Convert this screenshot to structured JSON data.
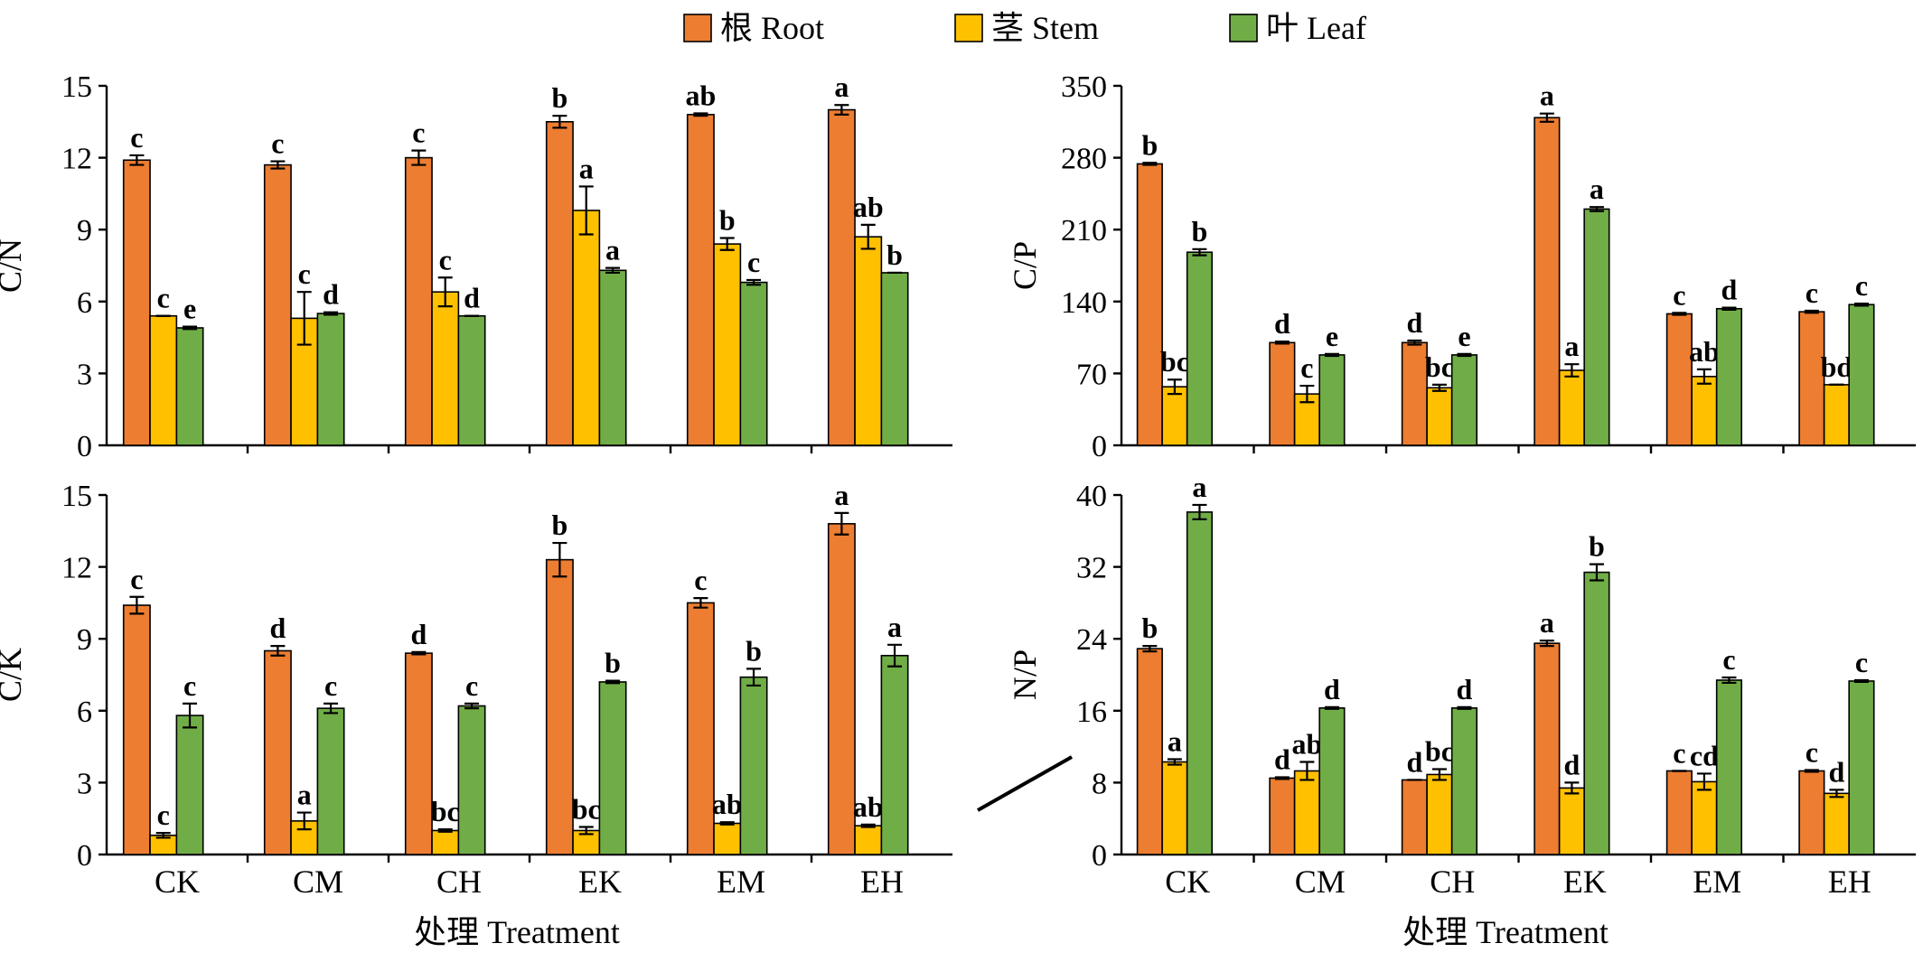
{
  "legend": [
    {
      "label": "根 Root",
      "color": "#ED7D31"
    },
    {
      "label": "茎 Stem",
      "color": "#FFC000"
    },
    {
      "label": "叶 Leaf",
      "color": "#70AD47"
    }
  ],
  "xlabel": "处理 Treatment",
  "chart_data": [
    {
      "type": "bar",
      "title": "",
      "ylabel": "C/N",
      "categories": [
        "CK",
        "CM",
        "CH",
        "EK",
        "EM",
        "EH"
      ],
      "ylim": [
        0,
        15
      ],
      "yticks": [
        0,
        3,
        6,
        9,
        12,
        15
      ],
      "series": [
        {
          "name": "根 Root",
          "values": [
            11.9,
            11.7,
            12.0,
            13.5,
            13.8,
            14.0
          ],
          "errors": [
            0.2,
            0.15,
            0.3,
            0.25,
            0.05,
            0.2
          ],
          "letters": [
            "c",
            "c",
            "c",
            "b",
            "ab",
            "a"
          ]
        },
        {
          "name": "茎 Stem",
          "values": [
            5.4,
            5.3,
            6.4,
            9.8,
            8.4,
            8.7
          ],
          "errors": [
            0.0,
            1.1,
            0.6,
            1.0,
            0.25,
            0.5
          ],
          "letters": [
            "c",
            "c",
            "c",
            "a",
            "b",
            "ab"
          ]
        },
        {
          "name": "叶 Leaf",
          "values": [
            4.9,
            5.5,
            5.4,
            7.3,
            6.8,
            7.2
          ],
          "errors": [
            0.05,
            0.05,
            0.0,
            0.1,
            0.1,
            0.0
          ],
          "letters": [
            "e",
            "d",
            "d",
            "a",
            "c",
            "b"
          ]
        }
      ],
      "grid": false
    },
    {
      "type": "bar",
      "title": "",
      "ylabel": "C/P",
      "categories": [
        "CK",
        "CM",
        "CH",
        "EK",
        "EM",
        "EH"
      ],
      "ylim": [
        0,
        350
      ],
      "yticks": [
        0,
        70,
        140,
        210,
        280,
        350
      ],
      "series": [
        {
          "name": "根 Root",
          "values": [
            274,
            100,
            100,
            319,
            128,
            130
          ],
          "errors": [
            1,
            1,
            2,
            4,
            1,
            1
          ],
          "letters": [
            "b",
            "d",
            "d",
            "a",
            "c",
            "c"
          ]
        },
        {
          "name": "茎 Stem",
          "values": [
            57,
            50,
            56,
            73,
            67,
            59
          ],
          "errors": [
            7,
            8,
            3,
            6,
            7,
            0
          ],
          "letters": [
            "bc",
            "c",
            "bc",
            "a",
            "ab",
            "bd"
          ]
        },
        {
          "name": "叶 Leaf",
          "values": [
            188,
            88,
            88,
            230,
            133,
            137
          ],
          "errors": [
            3,
            1,
            1,
            2,
            1,
            1
          ],
          "letters": [
            "b",
            "e",
            "e",
            "a",
            "d",
            "c"
          ]
        }
      ],
      "grid": false
    },
    {
      "type": "bar",
      "title": "",
      "ylabel": "C/K",
      "categories": [
        "CK",
        "CM",
        "CH",
        "EK",
        "EM",
        "EH"
      ],
      "ylim": [
        0,
        15
      ],
      "yticks": [
        0,
        3,
        6,
        9,
        12,
        15
      ],
      "series": [
        {
          "name": "根 Root",
          "values": [
            10.4,
            8.5,
            8.4,
            12.3,
            10.5,
            13.8
          ],
          "errors": [
            0.35,
            0.2,
            0.05,
            0.7,
            0.2,
            0.45
          ],
          "letters": [
            "c",
            "d",
            "d",
            "b",
            "c",
            "a"
          ]
        },
        {
          "name": "茎 Stem",
          "values": [
            0.8,
            1.4,
            1.0,
            1.0,
            1.3,
            1.2
          ],
          "errors": [
            0.1,
            0.35,
            0.05,
            0.15,
            0.05,
            0.05
          ],
          "letters": [
            "c",
            "a",
            "bc",
            "bc",
            "ab",
            "ab"
          ]
        },
        {
          "name": "叶 Leaf",
          "values": [
            5.8,
            6.1,
            6.2,
            7.2,
            7.4,
            8.3
          ],
          "errors": [
            0.5,
            0.2,
            0.1,
            0.05,
            0.35,
            0.45
          ],
          "letters": [
            "c",
            "c",
            "c",
            "b",
            "b",
            "a"
          ]
        }
      ],
      "grid": false
    },
    {
      "type": "bar",
      "title": "",
      "ylabel": "N/P",
      "categories": [
        "CK",
        "CM",
        "CH",
        "EK",
        "EM",
        "EH"
      ],
      "ylim": [
        0,
        40
      ],
      "yticks": [
        0,
        8,
        16,
        24,
        32,
        40
      ],
      "series": [
        {
          "name": "根 Root",
          "values": [
            22.9,
            8.5,
            8.3,
            23.5,
            9.3,
            9.3
          ],
          "errors": [
            0.3,
            0.1,
            0.0,
            0.3,
            0.0,
            0.1
          ],
          "letters": [
            "b",
            "d",
            "d",
            "a",
            "c",
            "c"
          ]
        },
        {
          "name": "茎 Stem",
          "values": [
            10.3,
            9.3,
            8.9,
            7.4,
            8.1,
            6.8
          ],
          "errors": [
            0.3,
            1.0,
            0.6,
            0.6,
            0.9,
            0.4
          ],
          "letters": [
            "a",
            "ab",
            "bc",
            "d",
            "cd",
            "d"
          ]
        },
        {
          "name": "叶 Leaf",
          "values": [
            38.1,
            16.3,
            16.3,
            31.4,
            19.4,
            19.3
          ],
          "errors": [
            0.8,
            0.1,
            0.1,
            0.9,
            0.3,
            0.1
          ],
          "letters": [
            "a",
            "d",
            "d",
            "b",
            "c",
            "c"
          ]
        }
      ],
      "grid": false
    }
  ]
}
